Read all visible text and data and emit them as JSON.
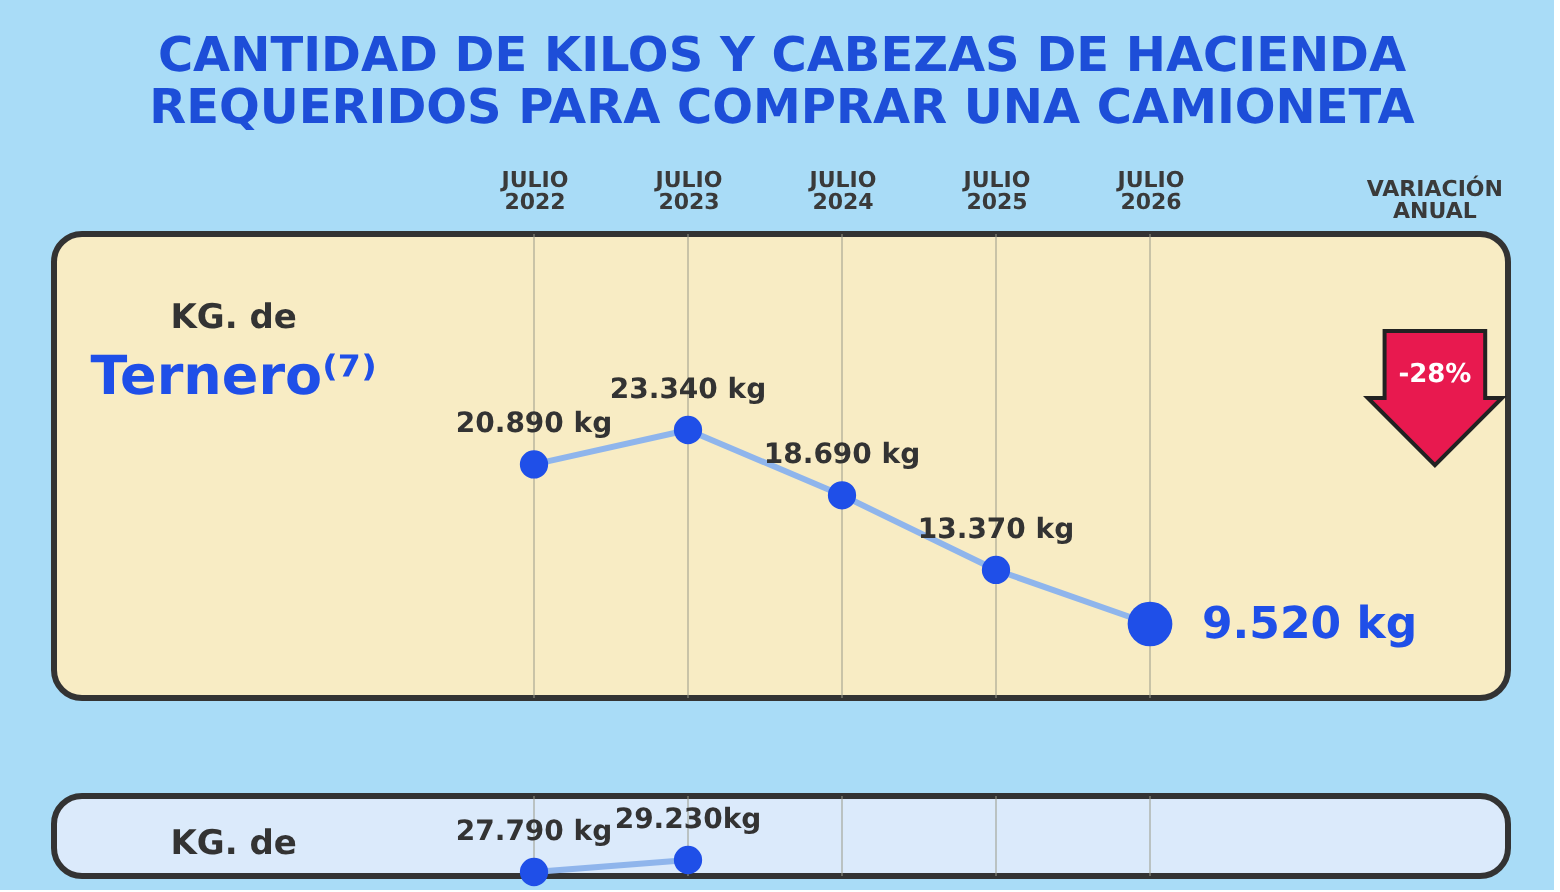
{
  "chart_data": [
    {
      "type": "line",
      "title": "CANTIDAD DE KILOS Y CABEZAS DE HACIENDA\nREQUERIDOS PARA COMPRAR UNA CAMIONETA",
      "categories": [
        "JULIO 2022",
        "JULIO 2023",
        "JULIO 2024",
        "JULIO 2025",
        "JULIO 2026"
      ],
      "series": [
        {
          "color": "#1f4fe8",
          "values": [
            20890,
            23340,
            18690,
            13370,
            9520
          ],
          "value_labels": [
            "20.890 kg",
            "23.340 kg",
            "18.690 kg",
            "13.370 kg",
            "9.520 kg"
          ]
        }
      ],
      "annotations": [
        "VARIACIÓN ANUAL",
        "KG. de",
        "Ternero⁽⁷⁾",
        "-28%"
      ],
      "grid": "x",
      "marker": "circle"
    },
    {
      "type": "line",
      "categories": [
        null,
        null,
        null,
        null,
        null
      ],
      "series": [
        {
          "color": "#1f4fe8",
          "values": [
            27790,
            29230,
            null,
            null,
            null
          ],
          "value_labels": [
            "27.790 kg",
            "29.230kg",
            null,
            null,
            null
          ]
        }
      ],
      "annotations": [
        "KG. de"
      ],
      "grid": "x",
      "marker": "circle"
    }
  ]
}
